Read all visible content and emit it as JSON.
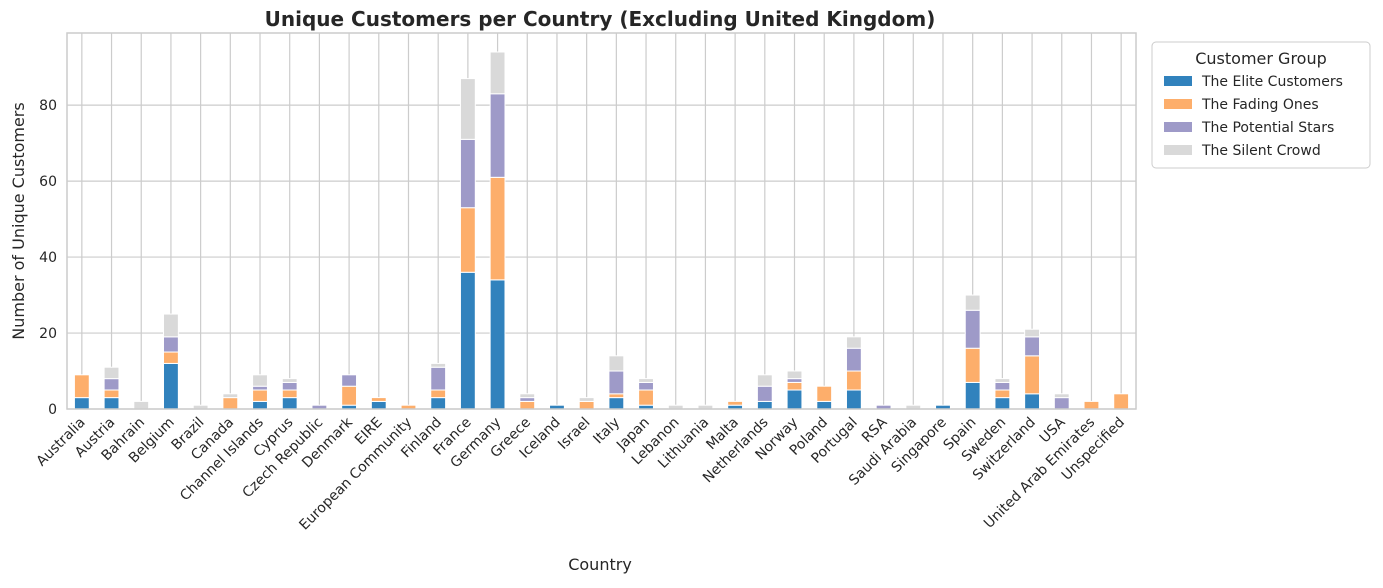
{
  "chart_data": {
    "type": "bar",
    "stacked": true,
    "title": "Unique Customers per Country (Excluding United Kingdom)",
    "xlabel": "Country",
    "ylabel": "Number of Unique Customers",
    "ylim": [
      0,
      99
    ],
    "yticks": [
      0,
      20,
      40,
      60,
      80
    ],
    "grid": true,
    "legend": {
      "title": "Customer Group",
      "placement": "outside-top-right"
    },
    "categories": [
      "Australia",
      "Austria",
      "Bahrain",
      "Belgium",
      "Brazil",
      "Canada",
      "Channel Islands",
      "Cyprus",
      "Czech Republic",
      "Denmark",
      "EIRE",
      "European Community",
      "Finland",
      "France",
      "Germany",
      "Greece",
      "Iceland",
      "Israel",
      "Italy",
      "Japan",
      "Lebanon",
      "Lithuania",
      "Malta",
      "Netherlands",
      "Norway",
      "Poland",
      "Portugal",
      "RSA",
      "Saudi Arabia",
      "Singapore",
      "Spain",
      "Sweden",
      "Switzerland",
      "USA",
      "United Arab Emirates",
      "Unspecified"
    ],
    "series": [
      {
        "name": "The Elite Customers",
        "color": "#3182bd",
        "values": [
          3,
          3,
          0,
          12,
          0,
          0,
          2,
          3,
          0,
          1,
          2,
          0,
          3,
          36,
          34,
          0,
          1,
          0,
          3,
          1,
          0,
          0,
          1,
          2,
          5,
          2,
          5,
          0,
          0,
          1,
          7,
          3,
          4,
          0,
          0,
          0
        ]
      },
      {
        "name": "The Fading Ones",
        "color": "#fdae6b",
        "values": [
          6,
          2,
          0,
          3,
          0,
          3,
          3,
          2,
          0,
          5,
          1,
          1,
          2,
          17,
          27,
          2,
          0,
          2,
          1,
          4,
          0,
          0,
          1,
          0,
          2,
          4,
          5,
          0,
          0,
          0,
          9,
          2,
          10,
          0,
          2,
          4
        ]
      },
      {
        "name": "The Potential Stars",
        "color": "#9e9ac8",
        "values": [
          0,
          3,
          0,
          4,
          0,
          0,
          1,
          2,
          1,
          3,
          0,
          0,
          6,
          18,
          22,
          1,
          0,
          0,
          6,
          2,
          0,
          0,
          0,
          4,
          1,
          0,
          6,
          1,
          0,
          0,
          10,
          2,
          5,
          3,
          0,
          0
        ]
      },
      {
        "name": "The Silent Crowd",
        "color": "#d9d9d9",
        "values": [
          0,
          3,
          2,
          6,
          1,
          1,
          3,
          1,
          0,
          0,
          0,
          0,
          1,
          16,
          11,
          1,
          0,
          1,
          4,
          1,
          1,
          1,
          0,
          3,
          2,
          0,
          3,
          0,
          1,
          0,
          4,
          1,
          2,
          1,
          0,
          0
        ]
      }
    ]
  }
}
